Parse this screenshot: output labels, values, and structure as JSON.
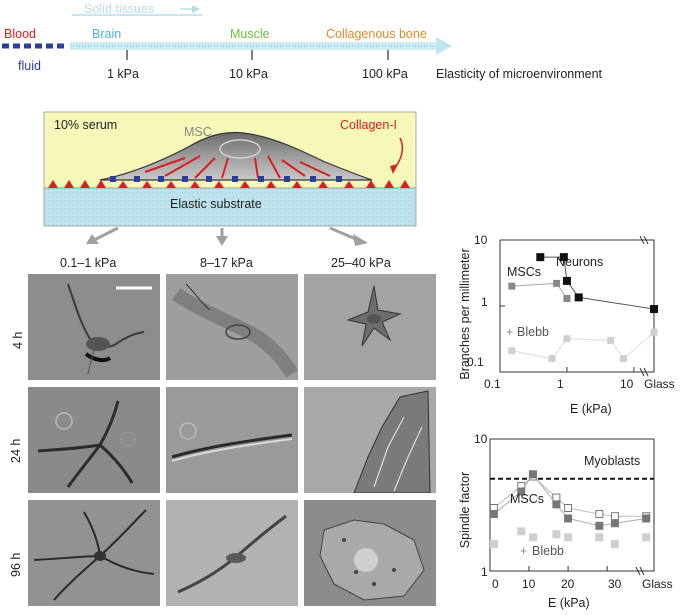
{
  "scale": {
    "blood": "Blood",
    "fluid": "fluid",
    "solid_tissues": "Solid tissues",
    "brain": "Brain",
    "muscle": "Muscle",
    "bone": "Collagenous bone",
    "ticks": [
      "1 kPa",
      "10 kPa",
      "100 kPa"
    ],
    "axis_label": "Elasticity of microenvironment",
    "colors": {
      "blood": "#d81e1e",
      "fluid": "#2c3e9c",
      "brain": "#4fb3d9",
      "muscle": "#6fbf3a",
      "bone": "#e08a2a"
    }
  },
  "schematic": {
    "serum": "10% serum",
    "cell": "MSC",
    "collagen": "Collagen-I",
    "substrate": "Elastic substrate"
  },
  "grid": {
    "columns": [
      "0.1–1 kPa",
      "8–17 kPa",
      "25–40 kPa"
    ],
    "rows": [
      "4 h",
      "24 h",
      "96 h"
    ]
  },
  "chart_data": [
    {
      "type": "scatter",
      "xlabel": "E (kPa)",
      "ylabel": "Branches per millimeter",
      "xscale": "log",
      "yscale": "log",
      "xlim": [
        0.1,
        20
      ],
      "ylim": [
        0.1,
        10
      ],
      "x_ticks": [
        "0.1",
        "1",
        "10",
        "Glass"
      ],
      "y_ticks": [
        "0.1",
        "1",
        "10"
      ],
      "series": [
        {
          "name": "Neurons",
          "x": [
            0.4,
            0.9,
            1.0,
            1.5,
            20
          ],
          "y": [
            5.5,
            5.5,
            2.4,
            1.35,
            0.9
          ]
        },
        {
          "name": "MSCs",
          "x": [
            0.15,
            0.7,
            1.0
          ],
          "y": [
            2.0,
            2.2,
            1.3
          ]
        },
        {
          "name": "Blebb",
          "x": [
            0.15,
            0.6,
            1.0,
            4.5,
            7,
            20
          ],
          "y": [
            0.21,
            0.16,
            0.32,
            0.3,
            0.16,
            0.4
          ]
        }
      ]
    },
    {
      "type": "scatter",
      "xlabel": "E (kPa)",
      "ylabel": "Spindle factor",
      "yscale": "log",
      "xlim": [
        0,
        42
      ],
      "ylim": [
        1,
        10
      ],
      "x_ticks": [
        "0",
        "10",
        "20",
        "30",
        "Glass"
      ],
      "y_ticks": [
        "1",
        "10"
      ],
      "annotation": "Myoblasts",
      "series": [
        {
          "name": "Myoblasts",
          "y": 5.0
        },
        {
          "name": "MSCs",
          "x": [
            1,
            8,
            11,
            17,
            20,
            28,
            32,
            40
          ],
          "y": [
            3.0,
            4.4,
            5.2,
            3.6,
            3.0,
            2.7,
            2.6,
            2.6
          ]
        },
        {
          "name": "MSCs",
          "x": [
            1,
            8,
            11,
            17,
            20,
            28,
            32,
            40
          ],
          "y": [
            2.7,
            4.0,
            5.4,
            3.2,
            2.5,
            2.2,
            2.3,
            2.5
          ]
        },
        {
          "name": "Blebb",
          "x": [
            1,
            8,
            11,
            17,
            20,
            28,
            32,
            40
          ],
          "y": [
            1.6,
            2.0,
            1.8,
            1.9,
            1.8,
            1.8,
            1.6,
            1.8
          ]
        }
      ]
    }
  ]
}
